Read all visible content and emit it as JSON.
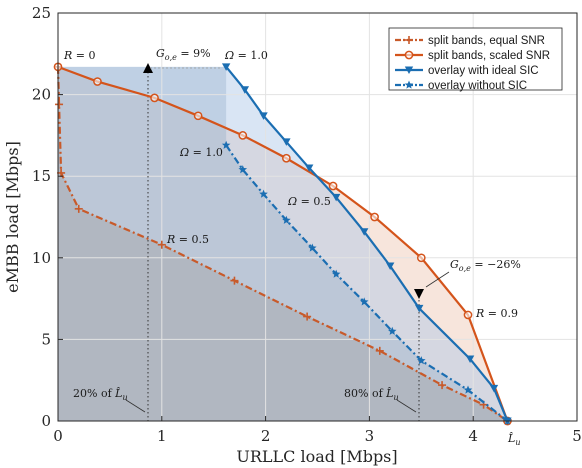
{
  "chart_data": {
    "type": "line",
    "xlabel": "URLLC load [Mbps]",
    "ylabel": "eMBB load [Mbps]",
    "xlim": [
      0,
      5
    ],
    "ylim": [
      0,
      25
    ],
    "xticks": [
      "0",
      "1",
      "2",
      "3",
      "4",
      "5"
    ],
    "yticks": [
      "0",
      "5",
      "10",
      "15",
      "20",
      "25"
    ],
    "grid": true,
    "legend_position": "top-right",
    "series": [
      {
        "name": "split bands, equal SNR",
        "color": "#c85a2a",
        "dash": "dashdot",
        "marker": "plus",
        "x": [
          0.0,
          0.01,
          0.03,
          0.2,
          1.0,
          1.7,
          2.4,
          3.1,
          3.7,
          4.1,
          4.33
        ],
        "y": [
          21.7,
          19.4,
          15.2,
          13.0,
          10.8,
          8.6,
          6.4,
          4.3,
          2.2,
          1.0,
          0.0
        ]
      },
      {
        "name": "split bands, scaled SNR",
        "color": "#d4541b",
        "dash": "solid",
        "marker": "circle",
        "x": [
          0.0,
          0.38,
          0.93,
          1.35,
          1.78,
          2.2,
          2.65,
          3.05,
          3.5,
          3.95,
          4.33
        ],
        "y": [
          21.7,
          20.8,
          19.8,
          18.7,
          17.5,
          16.1,
          14.4,
          12.5,
          10.0,
          6.5,
          0.0
        ]
      },
      {
        "name": "overlay with ideal SIC",
        "color": "#1b6eb2",
        "dash": "solid",
        "marker": "triangle-down",
        "x": [
          1.62,
          1.8,
          1.98,
          2.2,
          2.42,
          2.68,
          2.95,
          3.2,
          3.48,
          3.97,
          4.2,
          4.33
        ],
        "y": [
          21.7,
          20.3,
          18.7,
          17.1,
          15.5,
          13.7,
          11.6,
          9.5,
          6.9,
          3.8,
          2.0,
          0.0
        ]
      },
      {
        "name": "overlay without SIC",
        "color": "#1b6eb2",
        "dash": "dashdot",
        "marker": "star",
        "x": [
          1.62,
          1.78,
          1.98,
          2.2,
          2.45,
          2.68,
          2.95,
          3.22,
          3.5,
          3.95,
          4.33
        ],
        "y": [
          16.9,
          15.4,
          13.9,
          12.3,
          10.6,
          9.0,
          7.3,
          5.5,
          3.7,
          1.9,
          0.0
        ]
      }
    ],
    "annotations": [
      {
        "text": "R = 0",
        "x": 0.02,
        "y": 22.8
      },
      {
        "text": "G_{o,e} = 9%",
        "x": 0.95,
        "y": 22.8
      },
      {
        "text": "Ω = 1.0",
        "x": 1.62,
        "y": 22.8
      },
      {
        "text": "Ω = 1.0",
        "x": 1.15,
        "y": 16.7
      },
      {
        "text": "Ω = 0.5",
        "x": 2.25,
        "y": 13.4
      },
      {
        "text": "R = 0.5",
        "x": 1.05,
        "y": 11.0
      },
      {
        "text": "G_{o,e} = −26%",
        "x": 3.75,
        "y": 9.3
      },
      {
        "text": "R = 0.9",
        "x": 4.05,
        "y": 6.4
      },
      {
        "text": "20% of L̂_u",
        "x": 0.12,
        "y": 1.5
      },
      {
        "text": "80% of L̂_u",
        "x": 2.75,
        "y": 1.5
      },
      {
        "text": "L̂_u",
        "x": 4.33,
        "y": -1.2
      }
    ]
  }
}
